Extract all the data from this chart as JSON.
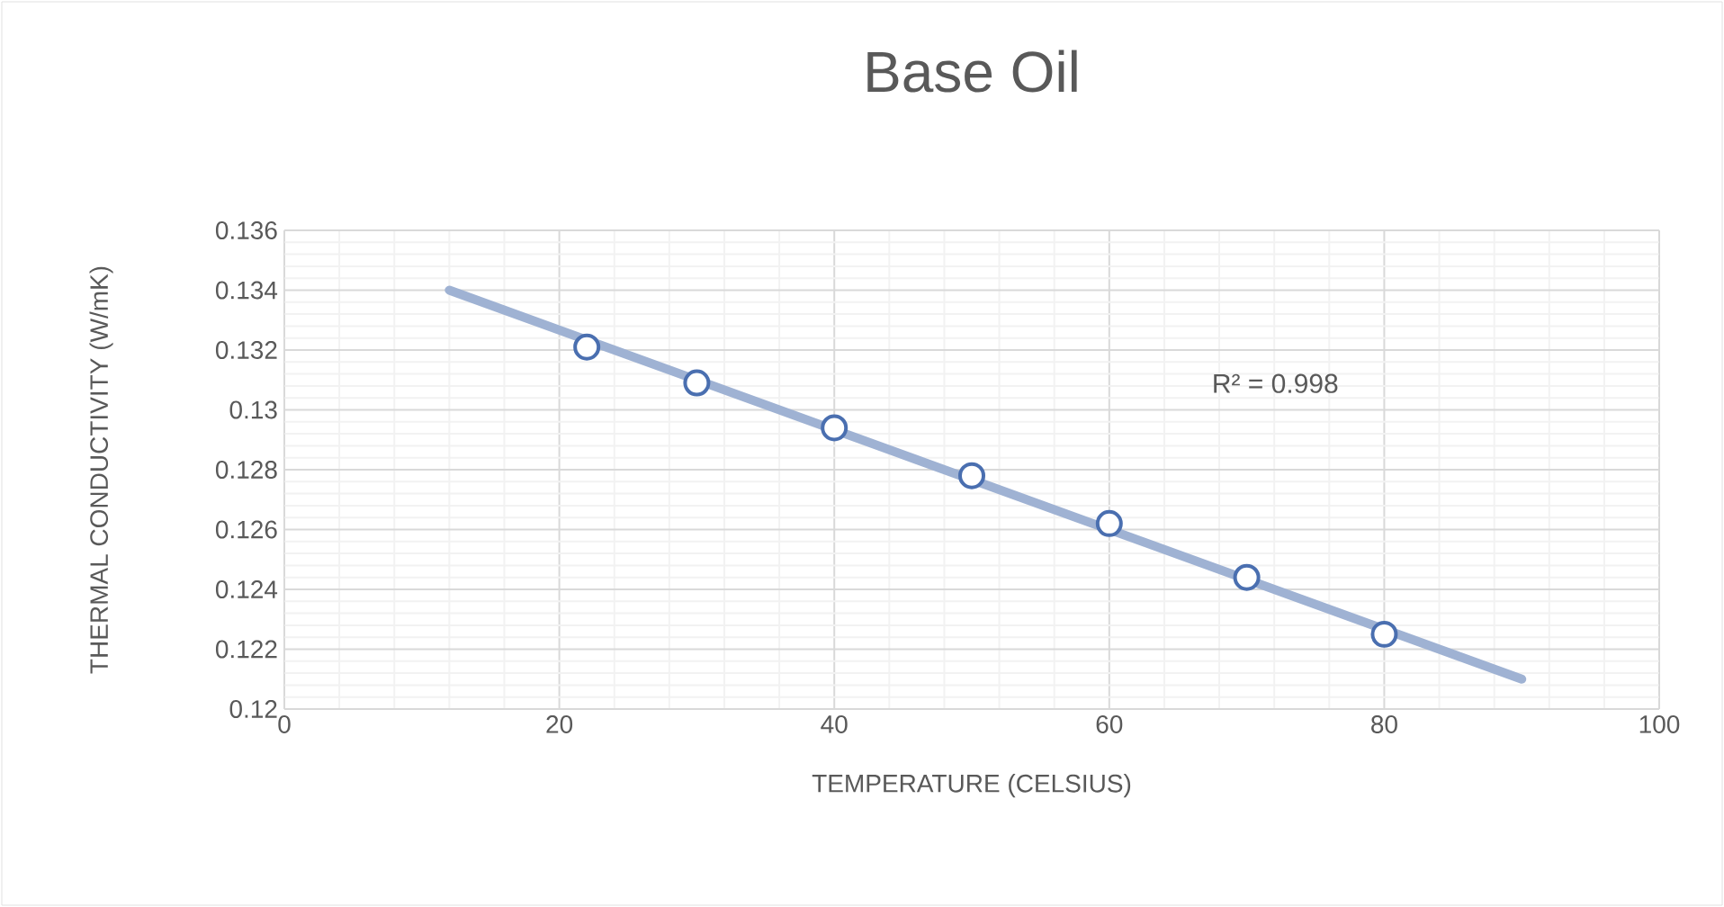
{
  "chart_data": {
    "type": "scatter",
    "title": "Base Oil",
    "xlabel": "TEMPERATURE (CELSIUS)",
    "ylabel": "THERMAL CONDUCTIVITY (W/mK)",
    "xlim": [
      0,
      100
    ],
    "xticks": [
      0,
      20,
      40,
      60,
      80,
      100
    ],
    "ylim": [
      0.12,
      0.136
    ],
    "yticks": [
      0.12,
      0.122,
      0.124,
      0.126,
      0.128,
      0.13,
      0.132,
      0.134,
      0.136
    ],
    "grid": true,
    "marker": "circle",
    "annotations": [
      "R² = 0.998"
    ],
    "series": [
      {
        "color": "#4a6fb0",
        "x": [
          22,
          30,
          40,
          50,
          60,
          70,
          80
        ],
        "values": [
          0.1321,
          0.1309,
          0.1294,
          0.1278,
          0.1262,
          0.1244,
          0.1225
        ]
      },
      {
        "type": "line",
        "marker": "none",
        "color": "#9fb2d3",
        "x": [
          12,
          90
        ],
        "values": [
          0.134,
          0.121
        ]
      }
    ]
  }
}
